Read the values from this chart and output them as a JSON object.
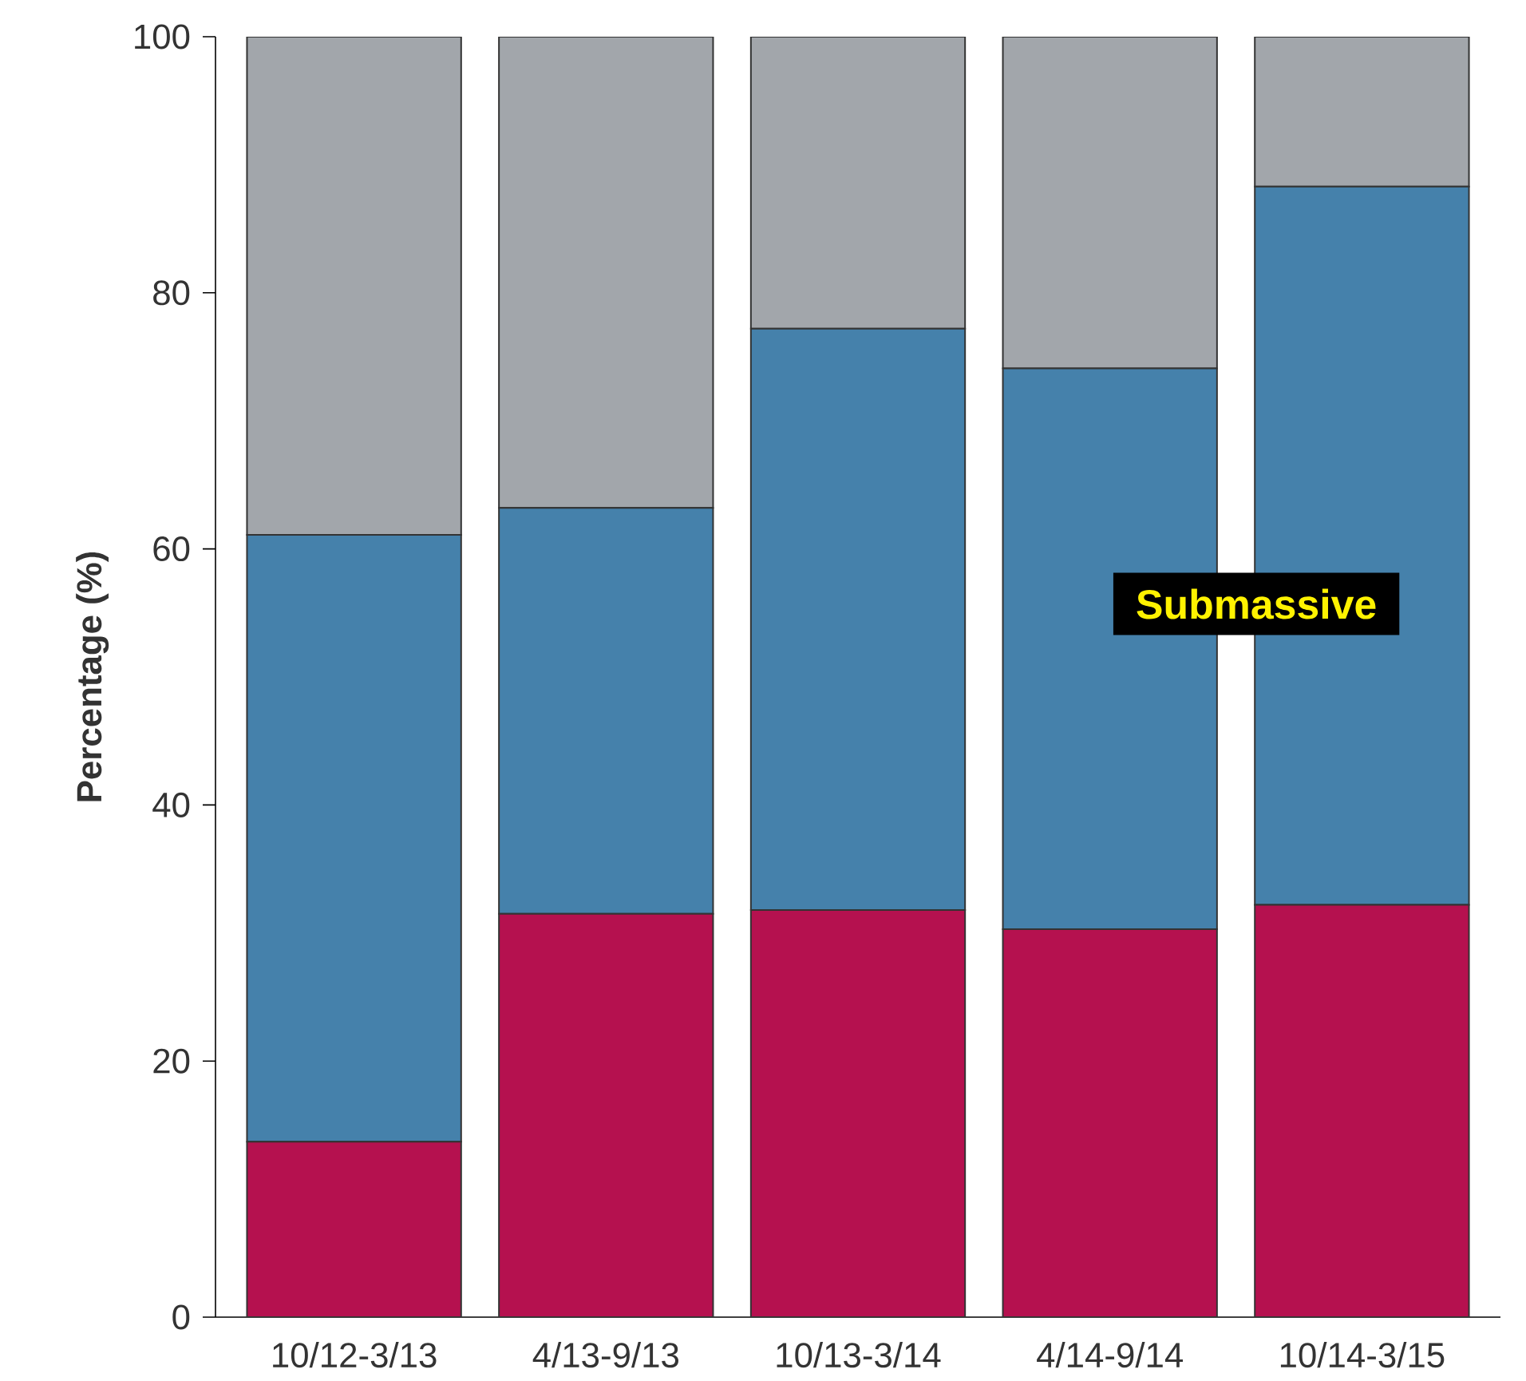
{
  "chart_data": {
    "type": "bar",
    "stacked": true,
    "ylabel": "Percentage (%)",
    "categories": [
      "10/12-3/13",
      "4/13-9/13",
      "10/13-3/14",
      "4/14-9/14",
      "10/14-3/15"
    ],
    "series": [
      {
        "color": "#b5114f",
        "values": [
          13.7,
          31.5,
          31.8,
          30.3,
          32.2
        ]
      },
      {
        "color": "#4581ab",
        "values": [
          47.4,
          31.7,
          45.4,
          43.8,
          56.1
        ]
      },
      {
        "color": "#a2a6ab",
        "values": [
          38.9,
          36.8,
          22.8,
          25.9,
          11.7
        ]
      }
    ],
    "ylim": [
      0,
      100
    ],
    "yticks": [
      0,
      20,
      40,
      60,
      80,
      100
    ],
    "annotations": [
      "Submassive"
    ]
  }
}
